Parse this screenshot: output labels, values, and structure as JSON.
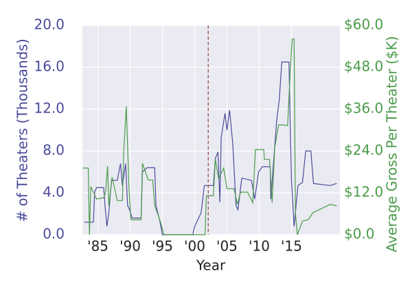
{
  "chart_data": {
    "type": "line",
    "xlabel": "Year",
    "ylabel": "# of Theaters (Thousands)",
    "y2label": "Average Gross Per Theater ($K)",
    "xlim": [
      1982.6,
      2022.5
    ],
    "xticks": [
      {
        "value": 1985,
        "label": "'85"
      },
      {
        "value": 1990,
        "label": "'90"
      },
      {
        "value": 1995,
        "label": "'95"
      },
      {
        "value": 2000,
        "label": "'00"
      },
      {
        "value": 2005,
        "label": "'05"
      },
      {
        "value": 2010,
        "label": "'10"
      },
      {
        "value": 2015,
        "label": "'15"
      }
    ],
    "ylim": [
      0,
      20
    ],
    "yticks": [
      {
        "value": 0,
        "label": "0.0"
      },
      {
        "value": 4,
        "label": "4.0"
      },
      {
        "value": 8,
        "label": "8.0"
      },
      {
        "value": 12,
        "label": "12.0"
      },
      {
        "value": 16,
        "label": "16.0"
      },
      {
        "value": 20,
        "label": "20.0"
      }
    ],
    "y2lim": [
      0,
      60
    ],
    "y2ticks": [
      {
        "value": 0,
        "label": "$0.0"
      },
      {
        "value": 12,
        "label": "$12.0"
      },
      {
        "value": 24,
        "label": "$24.0"
      },
      {
        "value": 36,
        "label": "$36.0"
      },
      {
        "value": 48,
        "label": "$48.0"
      },
      {
        "value": 60,
        "label": "$60.0"
      }
    ],
    "grid": true,
    "vline": 2002.1,
    "vline_color": "#a05a5a",
    "series": [
      {
        "name": "Theaters",
        "color": "#4a4a9c",
        "axis": "y",
        "x": [
          1982.9,
          1984.3,
          1984.5,
          1984.8,
          1985.9,
          1986.1,
          1986.4,
          1986.7,
          1987.1,
          1988.0,
          1988.5,
          1988.8,
          1989.3,
          1989.6,
          1989.9,
          1990.3,
          1991.7,
          1991.9,
          1992.6,
          1993.8,
          1994.0,
          1994.6,
          1995.0,
          1999.7,
          2000.0,
          2001.0,
          2001.5,
          2002.9,
          2003.2,
          2003.6,
          2003.9,
          2004.1,
          2004.7,
          2005.0,
          2005.4,
          2005.9,
          2006.4,
          2006.7,
          2007.3,
          2008.8,
          2009.3,
          2009.9,
          2010.5,
          2011.7,
          2011.8,
          2012.7,
          2013.1,
          2013.5,
          2014.6,
          2015.0,
          2015.4,
          2016.0,
          2016.7,
          2017.2,
          2018.0,
          2018.4,
          2021.0,
          2022.0
        ],
        "values": [
          1.2,
          1.2,
          4.1,
          4.5,
          4.5,
          2.8,
          0.8,
          2.1,
          5.2,
          5.2,
          6.8,
          4.7,
          6.8,
          2.8,
          2.4,
          1.6,
          1.6,
          6.0,
          6.4,
          6.4,
          2.8,
          1.3,
          0.0,
          0.0,
          0.8,
          2.1,
          4.7,
          4.7,
          7.3,
          7.9,
          3.1,
          9.3,
          11.6,
          10.0,
          11.9,
          8.7,
          2.8,
          2.4,
          5.4,
          5.2,
          3.4,
          6.0,
          6.5,
          6.5,
          3.4,
          10.9,
          12.9,
          16.5,
          16.5,
          5.1,
          0.8,
          4.7,
          5.0,
          8.0,
          8.0,
          4.9,
          4.7,
          4.9
        ]
      },
      {
        "name": "Average Gross",
        "color": "#4a9a4a",
        "axis": "y2",
        "x": [
          1982.7,
          1983.5,
          1983.7,
          1983.9,
          1984.8,
          1985.9,
          1986.2,
          1986.5,
          1986.7,
          1987.2,
          1988.0,
          1988.8,
          1989.0,
          1989.4,
          1989.8,
          1990.1,
          1991.7,
          1991.9,
          1992.8,
          1993.5,
          1993.8,
          1994.4,
          1994.9,
          1995.2,
          2001.6,
          2001.8,
          2002.9,
          2003.2,
          2003.7,
          2004.5,
          2005.0,
          2006.1,
          2006.6,
          2007.1,
          2008.2,
          2009.0,
          2009.4,
          2010.7,
          2010.8,
          2011.6,
          2012.0,
          2012.4,
          2013.0,
          2013.5,
          2014.4,
          2014.8,
          2015.1,
          2015.4,
          2015.6,
          2015.9,
          2016.7,
          2017.6,
          2018.3,
          2021.0,
          2022.0
        ],
        "values": [
          19.1,
          19.1,
          0.0,
          13.8,
          10.2,
          10.6,
          12.2,
          19.7,
          8.3,
          16.5,
          9.8,
          9.8,
          24.0,
          36.8,
          14.2,
          4.3,
          4.3,
          20.5,
          15.7,
          15.7,
          8.3,
          5.3,
          2.4,
          0.0,
          0.0,
          11.2,
          11.2,
          21.6,
          16.1,
          19.1,
          13.2,
          13.2,
          8.7,
          12.2,
          12.2,
          9.2,
          24.4,
          24.4,
          21.6,
          21.6,
          9.2,
          25.0,
          31.5,
          31.5,
          31.3,
          46.6,
          56.1,
          56.1,
          6.3,
          0.0,
          3.9,
          4.3,
          6.3,
          8.7,
          8.3
        ]
      }
    ]
  }
}
